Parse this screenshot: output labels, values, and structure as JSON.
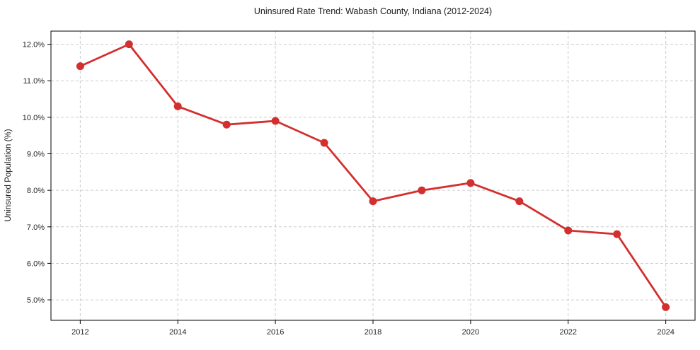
{
  "chart_data": {
    "type": "line",
    "title": "Uninsured Rate Trend: Wabash County, Indiana (2012-2024)",
    "xlabel": "",
    "ylabel": "Uninsured Population (%)",
    "x": [
      2012,
      2013,
      2014,
      2015,
      2016,
      2017,
      2018,
      2019,
      2020,
      2021,
      2022,
      2023,
      2024
    ],
    "values": [
      11.4,
      12.0,
      10.3,
      9.8,
      9.9,
      9.3,
      7.7,
      8.0,
      8.2,
      7.7,
      6.9,
      6.8,
      4.8
    ],
    "xlim": [
      2011.4,
      2024.6
    ],
    "ylim": [
      4.44,
      12.36
    ],
    "xticks": [
      {
        "value": 2012,
        "label": "2012"
      },
      {
        "value": 2014,
        "label": "2014"
      },
      {
        "value": 2016,
        "label": "2016"
      },
      {
        "value": 2018,
        "label": "2018"
      },
      {
        "value": 2020,
        "label": "2020"
      },
      {
        "value": 2022,
        "label": "2022"
      },
      {
        "value": 2024,
        "label": "2024"
      }
    ],
    "yticks": [
      {
        "value": 5.0,
        "label": "5.0%"
      },
      {
        "value": 6.0,
        "label": "6.0%"
      },
      {
        "value": 7.0,
        "label": "7.0%"
      },
      {
        "value": 8.0,
        "label": "8.0%"
      },
      {
        "value": 9.0,
        "label": "9.0%"
      },
      {
        "value": 10.0,
        "label": "10.0%"
      },
      {
        "value": 11.0,
        "label": "11.0%"
      },
      {
        "value": 12.0,
        "label": "12.0%"
      }
    ],
    "grid": true,
    "grid_style": "dashed",
    "legend_position": "none",
    "line_color": "#d32f2f",
    "marker": "circle",
    "marker_size": 5.5,
    "line_width": 2.8,
    "grid_color": "#cccccc",
    "spine_color": "#000000",
    "text_color": "#1a1a1a",
    "background_color": "#ffffff"
  }
}
